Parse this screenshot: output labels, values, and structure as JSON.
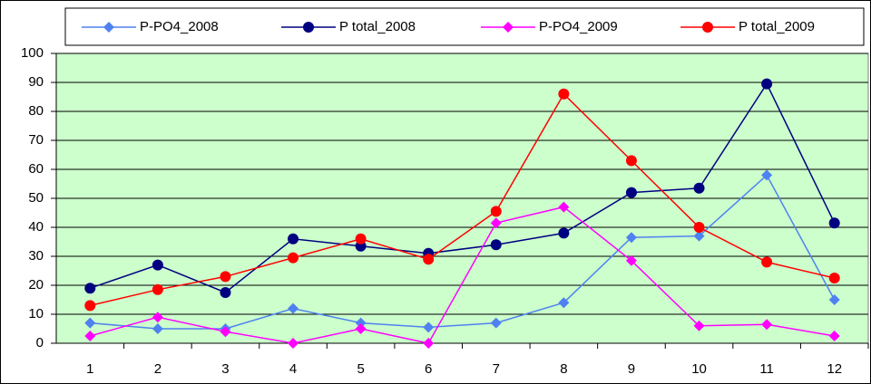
{
  "chart_data": {
    "type": "line",
    "categories": [
      "1",
      "2",
      "3",
      "4",
      "5",
      "6",
      "7",
      "8",
      "9",
      "10",
      "11",
      "12"
    ],
    "series": [
      {
        "name": "P-PO4_2008",
        "color": "#4f81f0",
        "marker": "diamond",
        "values": [
          7,
          5,
          5,
          12,
          7,
          5.5,
          7,
          14,
          36.5,
          37,
          58,
          15
        ]
      },
      {
        "name": "P total_2008",
        "color": "#000080",
        "marker": "circle",
        "values": [
          19,
          27,
          17.5,
          36,
          33.5,
          31,
          34,
          38,
          52,
          53.5,
          89.5,
          41.5
        ]
      },
      {
        "name": "P-PO4_2009",
        "color": "#ff00ff",
        "marker": "diamond",
        "values": [
          2.5,
          9,
          4,
          0,
          5,
          0,
          41.5,
          47,
          28.5,
          6,
          6.5,
          2.5
        ]
      },
      {
        "name": "P total_2009",
        "color": "#ff0000",
        "marker": "circle",
        "values": [
          13,
          18.5,
          23,
          29.5,
          36,
          29,
          45.5,
          86,
          63,
          40,
          28,
          22.5
        ]
      }
    ],
    "ylim": [
      0,
      100
    ],
    "yticks": [
      0,
      10,
      20,
      30,
      40,
      50,
      60,
      70,
      80,
      90,
      100
    ],
    "grid": true,
    "legend": "top",
    "plot_background": "#ccffcc"
  }
}
